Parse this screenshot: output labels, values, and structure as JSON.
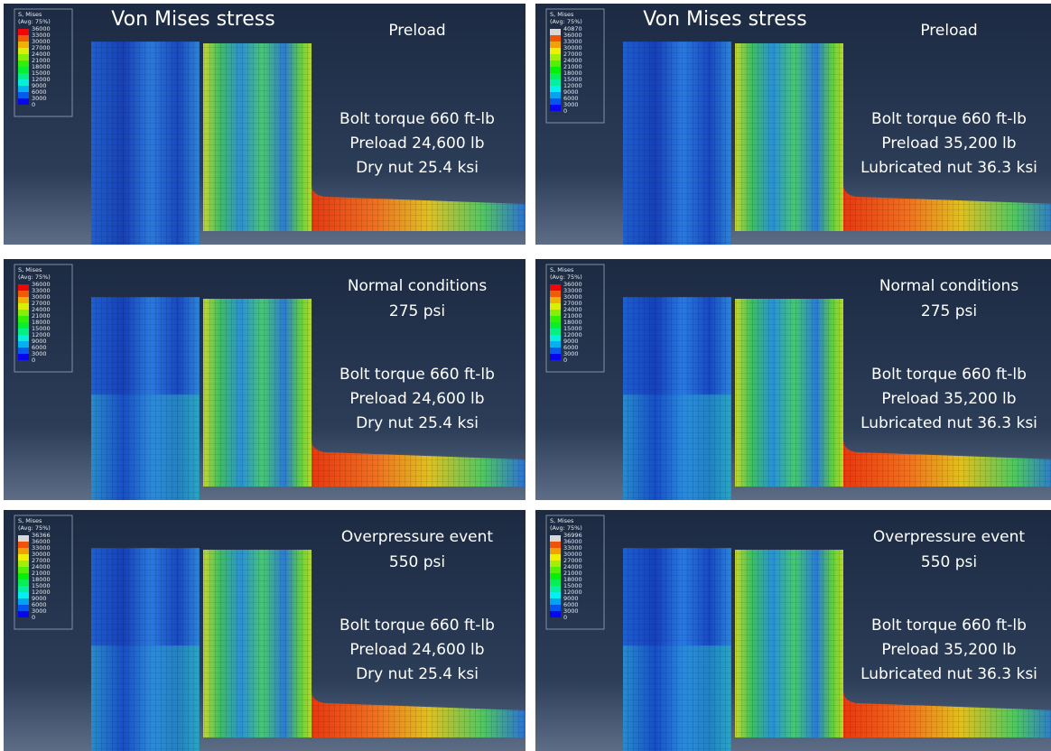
{
  "panels": [
    {
      "title": "Von Mises stress",
      "legend": {
        "label": "S, Mises",
        "sublabel": "(Avg: 75%)",
        "values": [
          36000,
          33000,
          30000,
          27000,
          24000,
          21000,
          18000,
          15000,
          12000,
          9000,
          6000,
          3000,
          0
        ]
      },
      "heading": [
        "Preload"
      ],
      "notes": [
        "Bolt torque 660 ft-lb",
        "Preload 24,600 lb",
        "Dry nut 25.4 ksi"
      ]
    },
    {
      "title": "Von Mises stress",
      "legend": {
        "label": "S, Mises",
        "sublabel": "(Avg: 75%)",
        "values": [
          40870,
          36000,
          33000,
          30000,
          27000,
          24000,
          21000,
          18000,
          15000,
          12000,
          9000,
          6000,
          3000,
          0
        ]
      },
      "heading": [
        "Preload"
      ],
      "notes": [
        "Bolt torque 660 ft-lb",
        "Preload 35,200 lb",
        "Lubricated nut 36.3 ksi"
      ]
    },
    {
      "legend": {
        "label": "S, Mises",
        "sublabel": "(Avg: 75%)",
        "values": [
          36000,
          33000,
          30000,
          27000,
          24000,
          21000,
          18000,
          15000,
          12000,
          9000,
          6000,
          3000,
          0
        ]
      },
      "heading": [
        "Normal conditions",
        "275 psi"
      ],
      "notes": [
        "Bolt torque 660 ft-lb",
        "Preload 24,600 lb",
        "Dry nut 25.4 ksi"
      ]
    },
    {
      "legend": {
        "label": "S, Mises",
        "sublabel": "(Avg: 75%)",
        "values": [
          36000,
          33000,
          30000,
          27000,
          24000,
          21000,
          18000,
          15000,
          12000,
          9000,
          6000,
          3000,
          0
        ]
      },
      "heading": [
        "Normal conditions",
        "275 psi"
      ],
      "notes": [
        "Bolt torque 660 ft-lb",
        "Preload 35,200 lb",
        "Lubricated nut 36.3 ksi"
      ]
    },
    {
      "legend": {
        "label": "S, Mises",
        "sublabel": "(Avg: 75%)",
        "values": [
          36366,
          36000,
          33000,
          30000,
          27000,
          24000,
          21000,
          18000,
          15000,
          12000,
          9000,
          6000,
          3000,
          0
        ]
      },
      "heading": [
        "Overpressure event",
        "550 psi"
      ],
      "notes": [
        "Bolt torque 660 ft-lb",
        "Preload 24,600 lb",
        "Dry nut 25.4 ksi"
      ]
    },
    {
      "legend": {
        "label": "S, Mises",
        "sublabel": "(Avg: 75%)",
        "values": [
          36996,
          36000,
          33000,
          30000,
          27000,
          24000,
          21000,
          18000,
          15000,
          12000,
          9000,
          6000,
          3000,
          0
        ]
      },
      "heading": [
        "Overpressure event",
        "550 psi"
      ],
      "notes": [
        "Bolt torque 660 ft-lb",
        "Preload 35,200 lb",
        "Lubricated nut 36.3 ksi"
      ]
    }
  ]
}
